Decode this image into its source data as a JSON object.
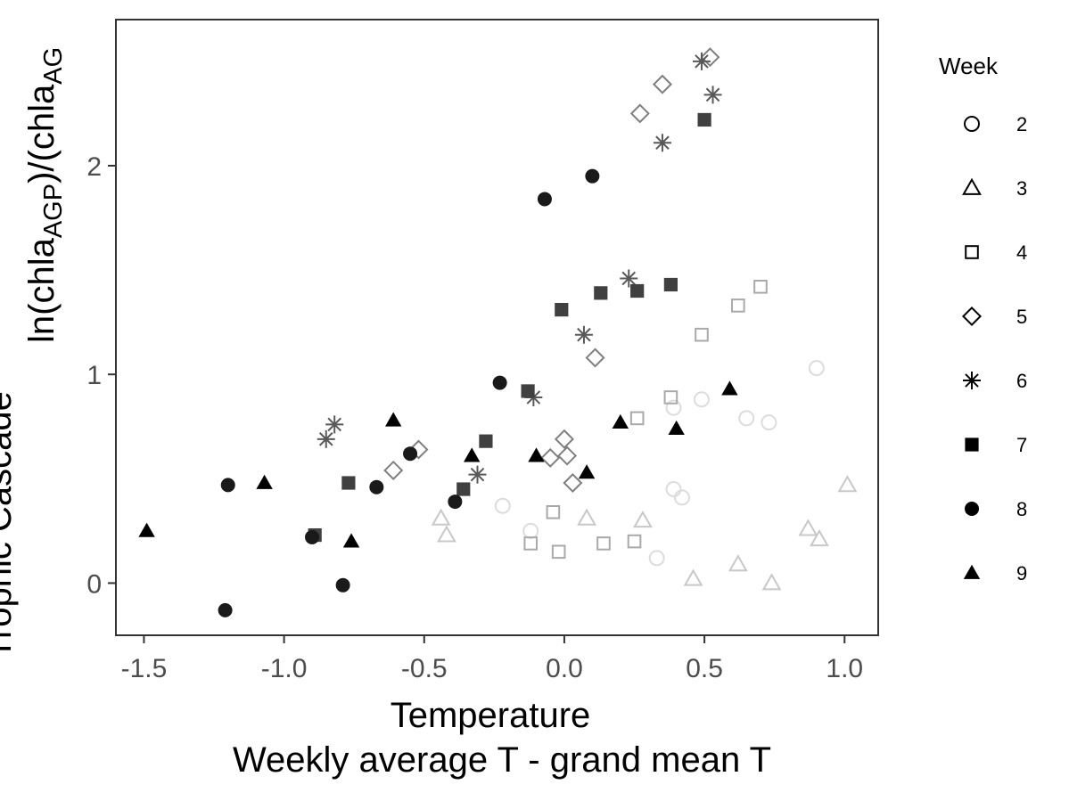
{
  "chart_data": {
    "type": "scatter",
    "xlabel_lines": [
      "Temperature",
      "Weekly average T - grand mean T"
    ],
    "ylabel_line1": "ln(chla",
    "ylabel_sub1": "AGP",
    "ylabel_mid": ")/(chla",
    "ylabel_sub2": "AG",
    "ylabel_line2": "Trophic Cascade",
    "xlim": [
      -1.6,
      1.12
    ],
    "ylim": [
      -0.25,
      2.7
    ],
    "x_ticks": [
      -1.5,
      -1.0,
      -0.5,
      0.0,
      0.5,
      1.0
    ],
    "x_tick_labels": [
      "-1.5",
      "-1.0",
      "-0.5",
      "0.0",
      "0.5",
      "1.0"
    ],
    "y_ticks": [
      0,
      1,
      2
    ],
    "y_tick_labels": [
      "0",
      "1",
      "2"
    ],
    "grid": false,
    "legend": {
      "title": "Week",
      "position": "right"
    },
    "series": [
      {
        "name": "2",
        "marker": "circle-open",
        "color": "#dcdcdc",
        "points": [
          [
            -0.22,
            0.37
          ],
          [
            -0.12,
            0.25
          ],
          [
            0.33,
            0.12
          ],
          [
            0.39,
            0.84
          ],
          [
            0.39,
            0.45
          ],
          [
            0.42,
            0.41
          ],
          [
            0.49,
            0.88
          ],
          [
            0.65,
            0.79
          ],
          [
            0.73,
            0.77
          ],
          [
            0.9,
            1.03
          ]
        ]
      },
      {
        "name": "3",
        "marker": "triangle-open",
        "color": "#c8c8c8",
        "points": [
          [
            -0.44,
            0.31
          ],
          [
            -0.42,
            0.23
          ],
          [
            0.08,
            0.31
          ],
          [
            0.28,
            0.3
          ],
          [
            0.46,
            0.02
          ],
          [
            0.62,
            0.09
          ],
          [
            0.74,
            0.0
          ],
          [
            0.87,
            0.26
          ],
          [
            0.91,
            0.21
          ],
          [
            1.01,
            0.47
          ]
        ]
      },
      {
        "name": "4",
        "marker": "square-open",
        "color": "#a9a9a9",
        "points": [
          [
            -0.12,
            0.19
          ],
          [
            -0.04,
            0.34
          ],
          [
            -0.02,
            0.15
          ],
          [
            0.14,
            0.19
          ],
          [
            0.25,
            0.2
          ],
          [
            0.26,
            0.79
          ],
          [
            0.38,
            0.89
          ],
          [
            0.49,
            1.19
          ],
          [
            0.62,
            1.33
          ],
          [
            0.7,
            1.42
          ]
        ]
      },
      {
        "name": "5",
        "marker": "diamond-open",
        "color": "#7f7f7f",
        "points": [
          [
            -0.61,
            0.54
          ],
          [
            -0.52,
            0.64
          ],
          [
            -0.05,
            0.6
          ],
          [
            0.0,
            0.69
          ],
          [
            0.01,
            0.61
          ],
          [
            0.03,
            0.48
          ],
          [
            0.11,
            1.08
          ],
          [
            0.27,
            2.25
          ],
          [
            0.35,
            2.39
          ],
          [
            0.52,
            2.52
          ]
        ]
      },
      {
        "name": "6",
        "marker": "asterisk",
        "color": "#595959",
        "points": [
          [
            -0.85,
            0.69
          ],
          [
            -0.82,
            0.76
          ],
          [
            -0.31,
            0.52
          ],
          [
            -0.11,
            0.89
          ],
          [
            0.07,
            1.19
          ],
          [
            0.23,
            1.46
          ],
          [
            0.35,
            2.11
          ],
          [
            0.49,
            2.5
          ],
          [
            0.53,
            2.34
          ]
        ]
      },
      {
        "name": "7",
        "marker": "square-filled",
        "color": "#404040",
        "points": [
          [
            -0.89,
            0.23
          ],
          [
            -0.77,
            0.48
          ],
          [
            -0.36,
            0.45
          ],
          [
            -0.28,
            0.68
          ],
          [
            -0.13,
            0.92
          ],
          [
            -0.01,
            1.31
          ],
          [
            0.13,
            1.39
          ],
          [
            0.26,
            1.4
          ],
          [
            0.38,
            1.43
          ],
          [
            0.5,
            2.22
          ]
        ]
      },
      {
        "name": "8",
        "marker": "circle-filled",
        "color": "#1a1a1a",
        "points": [
          [
            -1.21,
            -0.13
          ],
          [
            -1.2,
            0.47
          ],
          [
            -0.9,
            0.22
          ],
          [
            -0.79,
            -0.01
          ],
          [
            -0.67,
            0.46
          ],
          [
            -0.55,
            0.62
          ],
          [
            -0.39,
            0.39
          ],
          [
            -0.23,
            0.96
          ],
          [
            -0.07,
            1.84
          ],
          [
            0.1,
            1.95
          ]
        ]
      },
      {
        "name": "9",
        "marker": "triangle-filled",
        "color": "#000000",
        "points": [
          [
            -1.49,
            0.25
          ],
          [
            -1.07,
            0.48
          ],
          [
            -0.76,
            0.2
          ],
          [
            -0.61,
            0.78
          ],
          [
            -0.33,
            0.61
          ],
          [
            -0.1,
            0.61
          ],
          [
            0.08,
            0.53
          ],
          [
            0.2,
            0.77
          ],
          [
            0.4,
            0.74
          ],
          [
            0.59,
            0.93
          ]
        ]
      }
    ]
  }
}
